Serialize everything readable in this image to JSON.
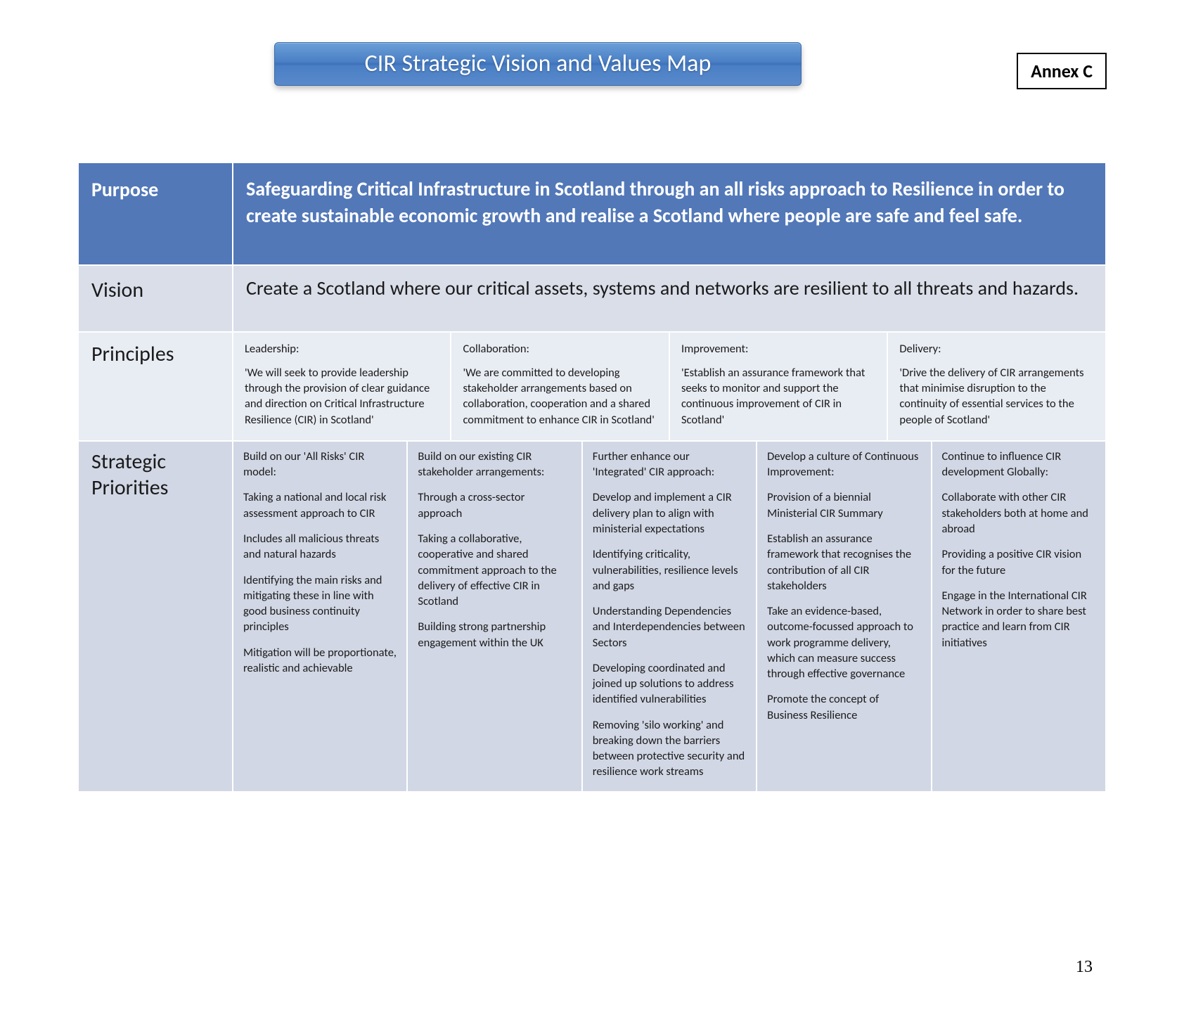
{
  "title": "CIR Strategic Vision and Values Map",
  "annex": "Annex C",
  "page_number": "13",
  "colors": {
    "banner_gradient_top": "#6b9fd8",
    "banner_gradient_bottom": "#4a7fc5",
    "purpose_bg": "#5278b8",
    "vision_bg": "#dadee9",
    "principles_bg": "#e8ecf3",
    "strategic_bg": "#d1d7e4",
    "cell_border": "#ffffff",
    "text_light": "#ffffff",
    "text_dark": "#1a1a1a"
  },
  "rows": {
    "purpose": {
      "label": "Purpose",
      "content": "Safeguarding Critical Infrastructure in Scotland through an all risks approach to Resilience in order to create sustainable economic growth and realise a Scotland where people are safe and feel safe."
    },
    "vision": {
      "label": "Vision",
      "content": "Create a Scotland where our critical assets, systems and networks are resilient to all threats and hazards."
    },
    "principles": {
      "label": "Principles",
      "cells": [
        {
          "title": "Leadership:",
          "body": "'We will seek to provide leadership through the provision of clear guidance and direction on Critical Infrastructure Resilience (CIR) in Scotland'"
        },
        {
          "title": "Collaboration:",
          "body": "'We are committed to developing stakeholder arrangements based on collaboration, cooperation and a shared commitment to enhance CIR in Scotland'"
        },
        {
          "title": "Improvement:",
          "body": "'Establish an assurance framework that seeks to monitor and support the continuous  improvement of CIR in Scotland'"
        },
        {
          "title": "Delivery:",
          "body": "'Drive the delivery of CIR arrangements that minimise disruption to the continuity of essential services to the people of Scotland'"
        }
      ]
    },
    "strategic": {
      "label": "Strategic Priorities",
      "cells": [
        {
          "paras": [
            "Build on our 'All Risks' CIR model:",
            "Taking a national and local risk assessment approach to CIR",
            "Includes all malicious threats and natural hazards",
            "Identifying the main risks and mitigating these in line with good business continuity principles",
            "Mitigation will be proportionate, realistic and achievable"
          ]
        },
        {
          "paras": [
            "Build on our existing CIR stakeholder arrangements:",
            "Through a cross-sector approach",
            "Taking a collaborative, cooperative and shared commitment approach to the delivery of effective CIR in Scotland",
            "Building strong partnership engagement within the UK"
          ]
        },
        {
          "paras": [
            "Further enhance our 'Integrated' CIR approach:",
            "Develop and implement a CIR delivery plan to align with ministerial expectations",
            "Identifying criticality, vulnerabilities, resilience levels and gaps",
            "Understanding Dependencies and Interdependencies between Sectors",
            "Developing coordinated and joined up solutions to address identified vulnerabilities",
            "Removing 'silo working' and breaking down the barriers between protective security and resilience work streams"
          ]
        },
        {
          "paras": [
            "Develop a culture of Continuous Improvement:",
            "Provision of a biennial Ministerial CIR Summary",
            "Establish an assurance framework that recognises the contribution of all CIR stakeholders",
            "Take an evidence-based, outcome-focussed approach to work programme delivery, which can measure success through effective governance",
            "Promote the concept of Business Resilience"
          ]
        },
        {
          "paras": [
            "Continue to influence CIR development Globally:",
            "Collaborate with other CIR stakeholders both at home and abroad",
            "Providing a positive CIR vision for the future",
            "Engage in the International CIR Network in order to share best practice and learn from CIR initiatives"
          ]
        }
      ]
    }
  }
}
